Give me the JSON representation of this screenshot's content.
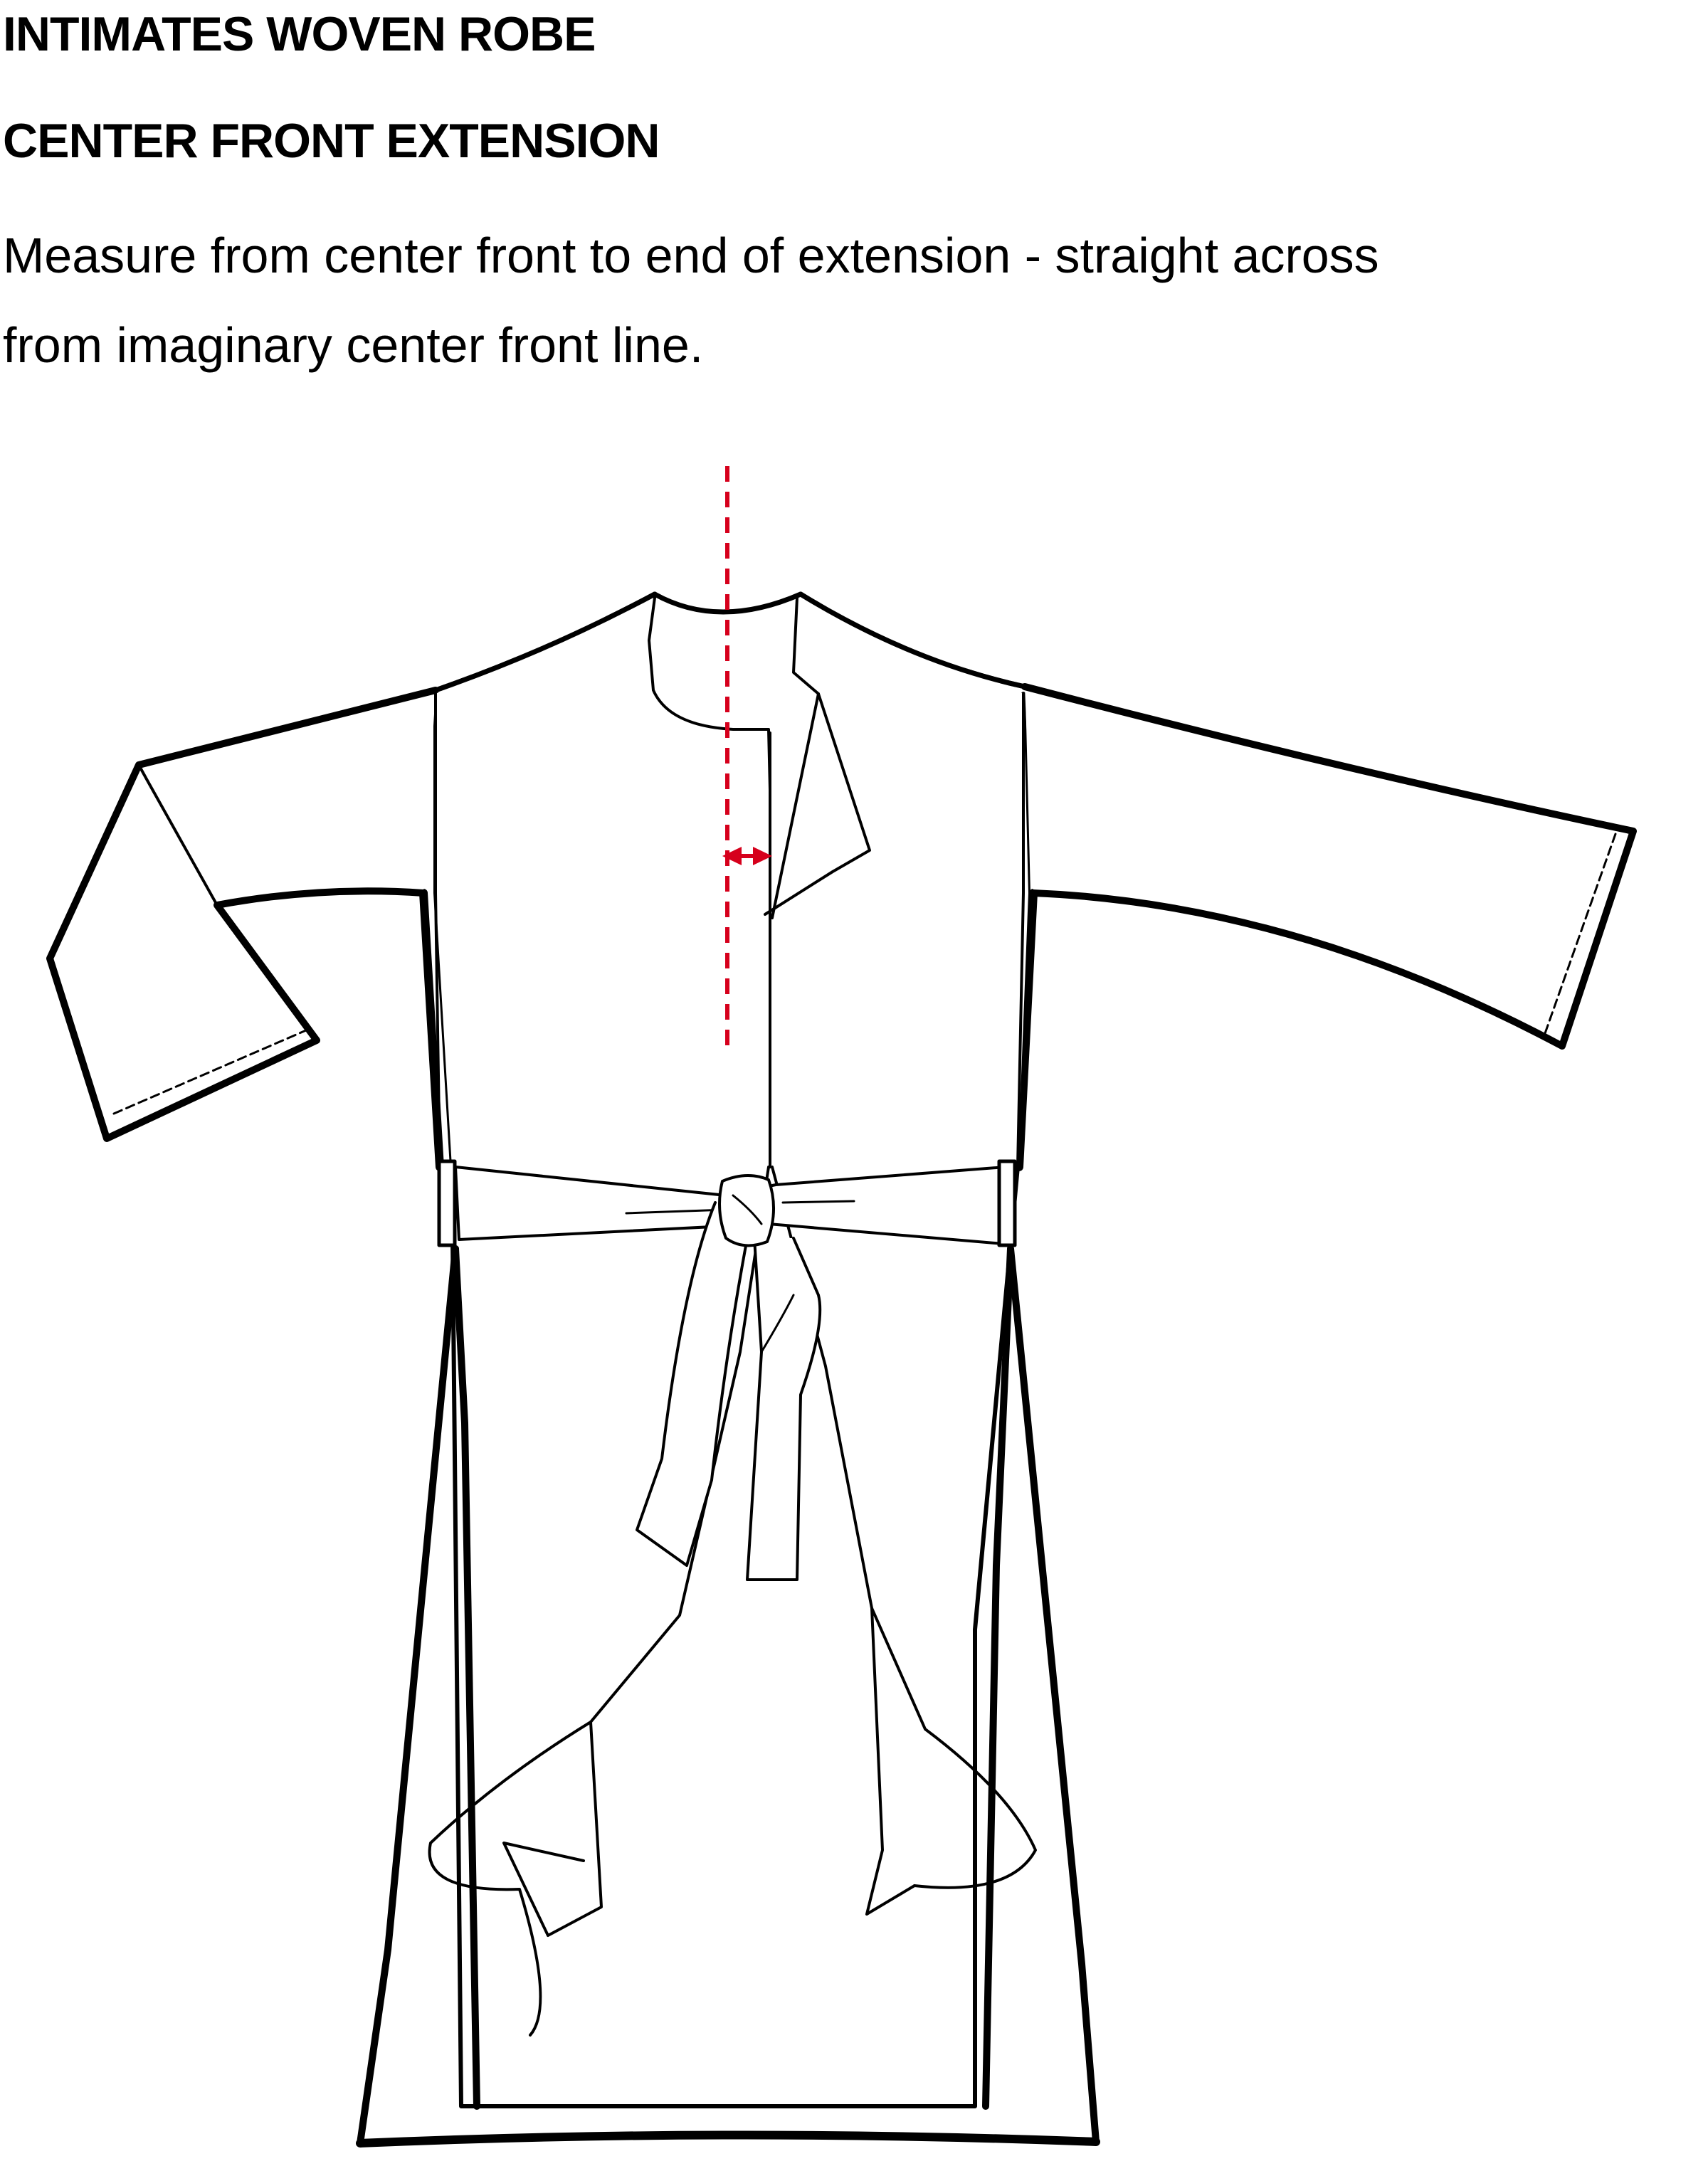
{
  "header": {
    "title": "INTIMATES WOVEN ROBE",
    "subtitle": "CENTER FRONT EXTENSION",
    "instruction_line_1": "Measure from center front to end of extension - straight across",
    "instruction_line_2": "from imaginary center front line."
  },
  "diagram": {
    "garment": "robe-front-view",
    "colors": {
      "outline": "#000000",
      "measure_line": "#d6001c",
      "fill": "#ffffff"
    },
    "elements": [
      "center-front-dashed-line",
      "extension-measure-arrow",
      "belt",
      "belt-loops",
      "sleeve-hem-stitching"
    ]
  }
}
